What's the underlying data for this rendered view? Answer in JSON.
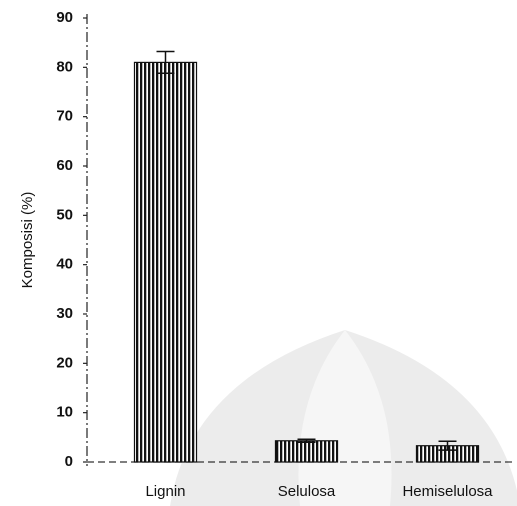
{
  "chart_data": {
    "type": "bar",
    "ylabel": "Komposisi (%)",
    "categories": [
      "Lignin",
      "Selulosa",
      "Hemiselulosa"
    ],
    "values": [
      81,
      4.3,
      3.3
    ],
    "errors": [
      2.2,
      0.3,
      0.9
    ],
    "color": "#111111",
    "ylim": [
      0,
      90
    ],
    "yticks": [
      0,
      10,
      20,
      30,
      40,
      50,
      60,
      70,
      80,
      90
    ]
  }
}
